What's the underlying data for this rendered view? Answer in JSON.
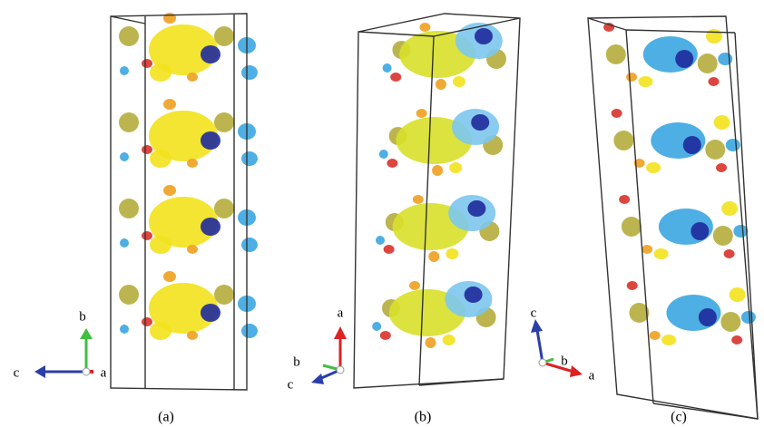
{
  "panels": [
    {
      "label": "(a)",
      "axes": [
        "b",
        "c",
        "a"
      ]
    },
    {
      "label": "(b)",
      "axes": [
        "a",
        "b",
        "c"
      ]
    },
    {
      "label": "(c)",
      "axes": [
        "c",
        "b",
        "a"
      ]
    }
  ]
}
